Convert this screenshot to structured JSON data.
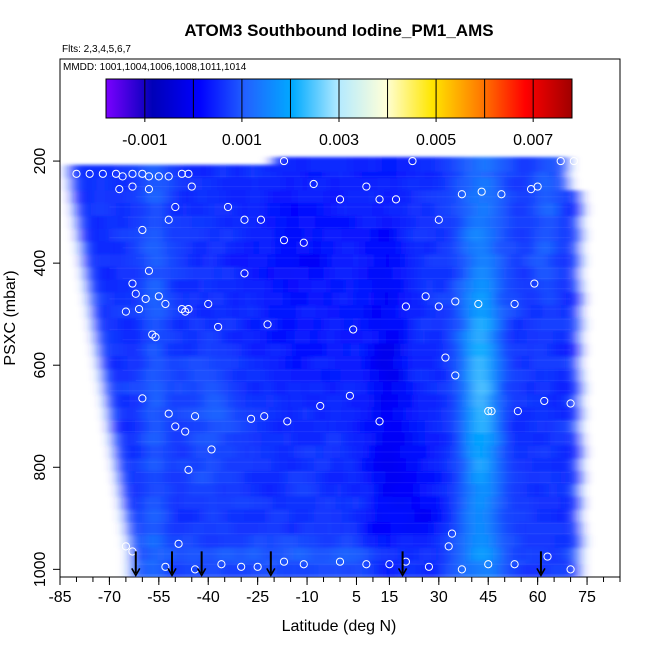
{
  "chart_data": {
    "type": "heatmap",
    "title": "ATOM3 Southbound Iodine_PM1_AMS",
    "subtitle_flights": "Flts: 2,3,4,5,6,7",
    "subtitle_dates": "MMDD: 1001,1004,1006,1008,1011,1014",
    "xlabel": "Latitude (deg N)",
    "ylabel": "PSXC (mbar)",
    "xlim": [
      -85,
      85
    ],
    "ylim": [
      1015,
      0
    ],
    "y_reversed": true,
    "x_ticks": [
      -85,
      -70,
      -55,
      -40,
      -25,
      -10,
      5,
      15,
      30,
      45,
      60,
      75
    ],
    "x_minor_step": 5,
    "y_ticks": [
      200,
      400,
      600,
      800,
      1000
    ],
    "colorbar": {
      "min": -0.0018,
      "max": 0.0078,
      "tick_values": [
        -0.001,
        0.001,
        0.003,
        0.005,
        0.007
      ],
      "tick_labels": [
        "-0.001",
        "0.001",
        "0.003",
        "0.005",
        "0.007"
      ],
      "boundaries": [
        -0.0018,
        -0.001,
        0.0,
        0.001,
        0.002,
        0.003,
        0.004,
        0.005,
        0.006,
        0.007,
        0.0078
      ],
      "colors": [
        "#7a00ff",
        "#0000b8",
        "#0000ff",
        "#2262ff",
        "#00aaff",
        "#b4eaff",
        "#ffffd8",
        "#ffe600",
        "#ff7f00",
        "#ff0000",
        "#a00000"
      ]
    },
    "profile_bottoms": [
      {
        "lat": -62,
        "p": 1000
      },
      {
        "lat": -51,
        "p": 1000
      },
      {
        "lat": -42,
        "p": 1000
      },
      {
        "lat": -21,
        "p": 1000
      },
      {
        "lat": 19,
        "p": 1000
      },
      {
        "lat": 61,
        "p": 1000
      }
    ],
    "observations": [
      {
        "lat": -80,
        "p": 225
      },
      {
        "lat": -76,
        "p": 225
      },
      {
        "lat": -72,
        "p": 225
      },
      {
        "lat": -68,
        "p": 225
      },
      {
        "lat": -66,
        "p": 230
      },
      {
        "lat": -63,
        "p": 225
      },
      {
        "lat": -60,
        "p": 225
      },
      {
        "lat": -58,
        "p": 230
      },
      {
        "lat": -55,
        "p": 230
      },
      {
        "lat": -52,
        "p": 230
      },
      {
        "lat": -48,
        "p": 225
      },
      {
        "lat": -46,
        "p": 225
      },
      {
        "lat": -67,
        "p": 255
      },
      {
        "lat": -63,
        "p": 250
      },
      {
        "lat": -58,
        "p": 255
      },
      {
        "lat": -45,
        "p": 250
      },
      {
        "lat": -34,
        "p": 290
      },
      {
        "lat": -50,
        "p": 290
      },
      {
        "lat": -52,
        "p": 315
      },
      {
        "lat": -29,
        "p": 315
      },
      {
        "lat": -24,
        "p": 315
      },
      {
        "lat": -60,
        "p": 335
      },
      {
        "lat": -17,
        "p": 355
      },
      {
        "lat": -11,
        "p": 360
      },
      {
        "lat": -29,
        "p": 420
      },
      {
        "lat": -58,
        "p": 415
      },
      {
        "lat": -63,
        "p": 440
      },
      {
        "lat": -62,
        "p": 460
      },
      {
        "lat": -59,
        "p": 470
      },
      {
        "lat": -55,
        "p": 465
      },
      {
        "lat": -65,
        "p": 495
      },
      {
        "lat": -61,
        "p": 490
      },
      {
        "lat": -53,
        "p": 480
      },
      {
        "lat": -48,
        "p": 490
      },
      {
        "lat": -47,
        "p": 495
      },
      {
        "lat": -46,
        "p": 490
      },
      {
        "lat": -40,
        "p": 480
      },
      {
        "lat": -22,
        "p": 520
      },
      {
        "lat": -37,
        "p": 525
      },
      {
        "lat": -57,
        "p": 540
      },
      {
        "lat": -56,
        "p": 545
      },
      {
        "lat": 4,
        "p": 530
      },
      {
        "lat": -17,
        "p": 200
      },
      {
        "lat": -8,
        "p": 245
      },
      {
        "lat": 0,
        "p": 275
      },
      {
        "lat": 8,
        "p": 250
      },
      {
        "lat": 12,
        "p": 275
      },
      {
        "lat": 17,
        "p": 275
      },
      {
        "lat": 22,
        "p": 200
      },
      {
        "lat": 30,
        "p": 315
      },
      {
        "lat": 37,
        "p": 265
      },
      {
        "lat": 43,
        "p": 260
      },
      {
        "lat": 49,
        "p": 265
      },
      {
        "lat": 58,
        "p": 255
      },
      {
        "lat": 71,
        "p": 200
      },
      {
        "lat": 67,
        "p": 200
      },
      {
        "lat": 60,
        "p": 250
      },
      {
        "lat": 26,
        "p": 465
      },
      {
        "lat": 20,
        "p": 485
      },
      {
        "lat": 35,
        "p": 475
      },
      {
        "lat": 42,
        "p": 480
      },
      {
        "lat": 53,
        "p": 480
      },
      {
        "lat": 30,
        "p": 485
      },
      {
        "lat": 59,
        "p": 440
      },
      {
        "lat": 32,
        "p": 585
      },
      {
        "lat": 35,
        "p": 620
      },
      {
        "lat": 45,
        "p": 690
      },
      {
        "lat": 46,
        "p": 690
      },
      {
        "lat": 54,
        "p": 690
      },
      {
        "lat": 62,
        "p": 670
      },
      {
        "lat": 70,
        "p": 675
      },
      {
        "lat": -60,
        "p": 665
      },
      {
        "lat": -52,
        "p": 695
      },
      {
        "lat": -50,
        "p": 720
      },
      {
        "lat": -44,
        "p": 700
      },
      {
        "lat": -47,
        "p": 730
      },
      {
        "lat": -39,
        "p": 765
      },
      {
        "lat": -27,
        "p": 705
      },
      {
        "lat": -23,
        "p": 700
      },
      {
        "lat": -16,
        "p": 710
      },
      {
        "lat": -6,
        "p": 680
      },
      {
        "lat": 3,
        "p": 660
      },
      {
        "lat": 12,
        "p": 710
      },
      {
        "lat": -46,
        "p": 805
      },
      {
        "lat": -65,
        "p": 955
      },
      {
        "lat": -63,
        "p": 965
      },
      {
        "lat": -49,
        "p": 950
      },
      {
        "lat": -36,
        "p": 990
      },
      {
        "lat": -30,
        "p": 995
      },
      {
        "lat": -25,
        "p": 995
      },
      {
        "lat": -17,
        "p": 985
      },
      {
        "lat": -11,
        "p": 990
      },
      {
        "lat": 0,
        "p": 985
      },
      {
        "lat": 8,
        "p": 990
      },
      {
        "lat": 15,
        "p": 990
      },
      {
        "lat": 20,
        "p": 985
      },
      {
        "lat": 27,
        "p": 995
      },
      {
        "lat": 33,
        "p": 955
      },
      {
        "lat": 34,
        "p": 930
      },
      {
        "lat": 37,
        "p": 1000
      },
      {
        "lat": 45,
        "p": 990
      },
      {
        "lat": 53,
        "p": 990
      },
      {
        "lat": 63,
        "p": 975
      },
      {
        "lat": 70,
        "p": 1000
      },
      {
        "lat": -53,
        "p": 995
      },
      {
        "lat": -44,
        "p": 1000
      }
    ]
  }
}
